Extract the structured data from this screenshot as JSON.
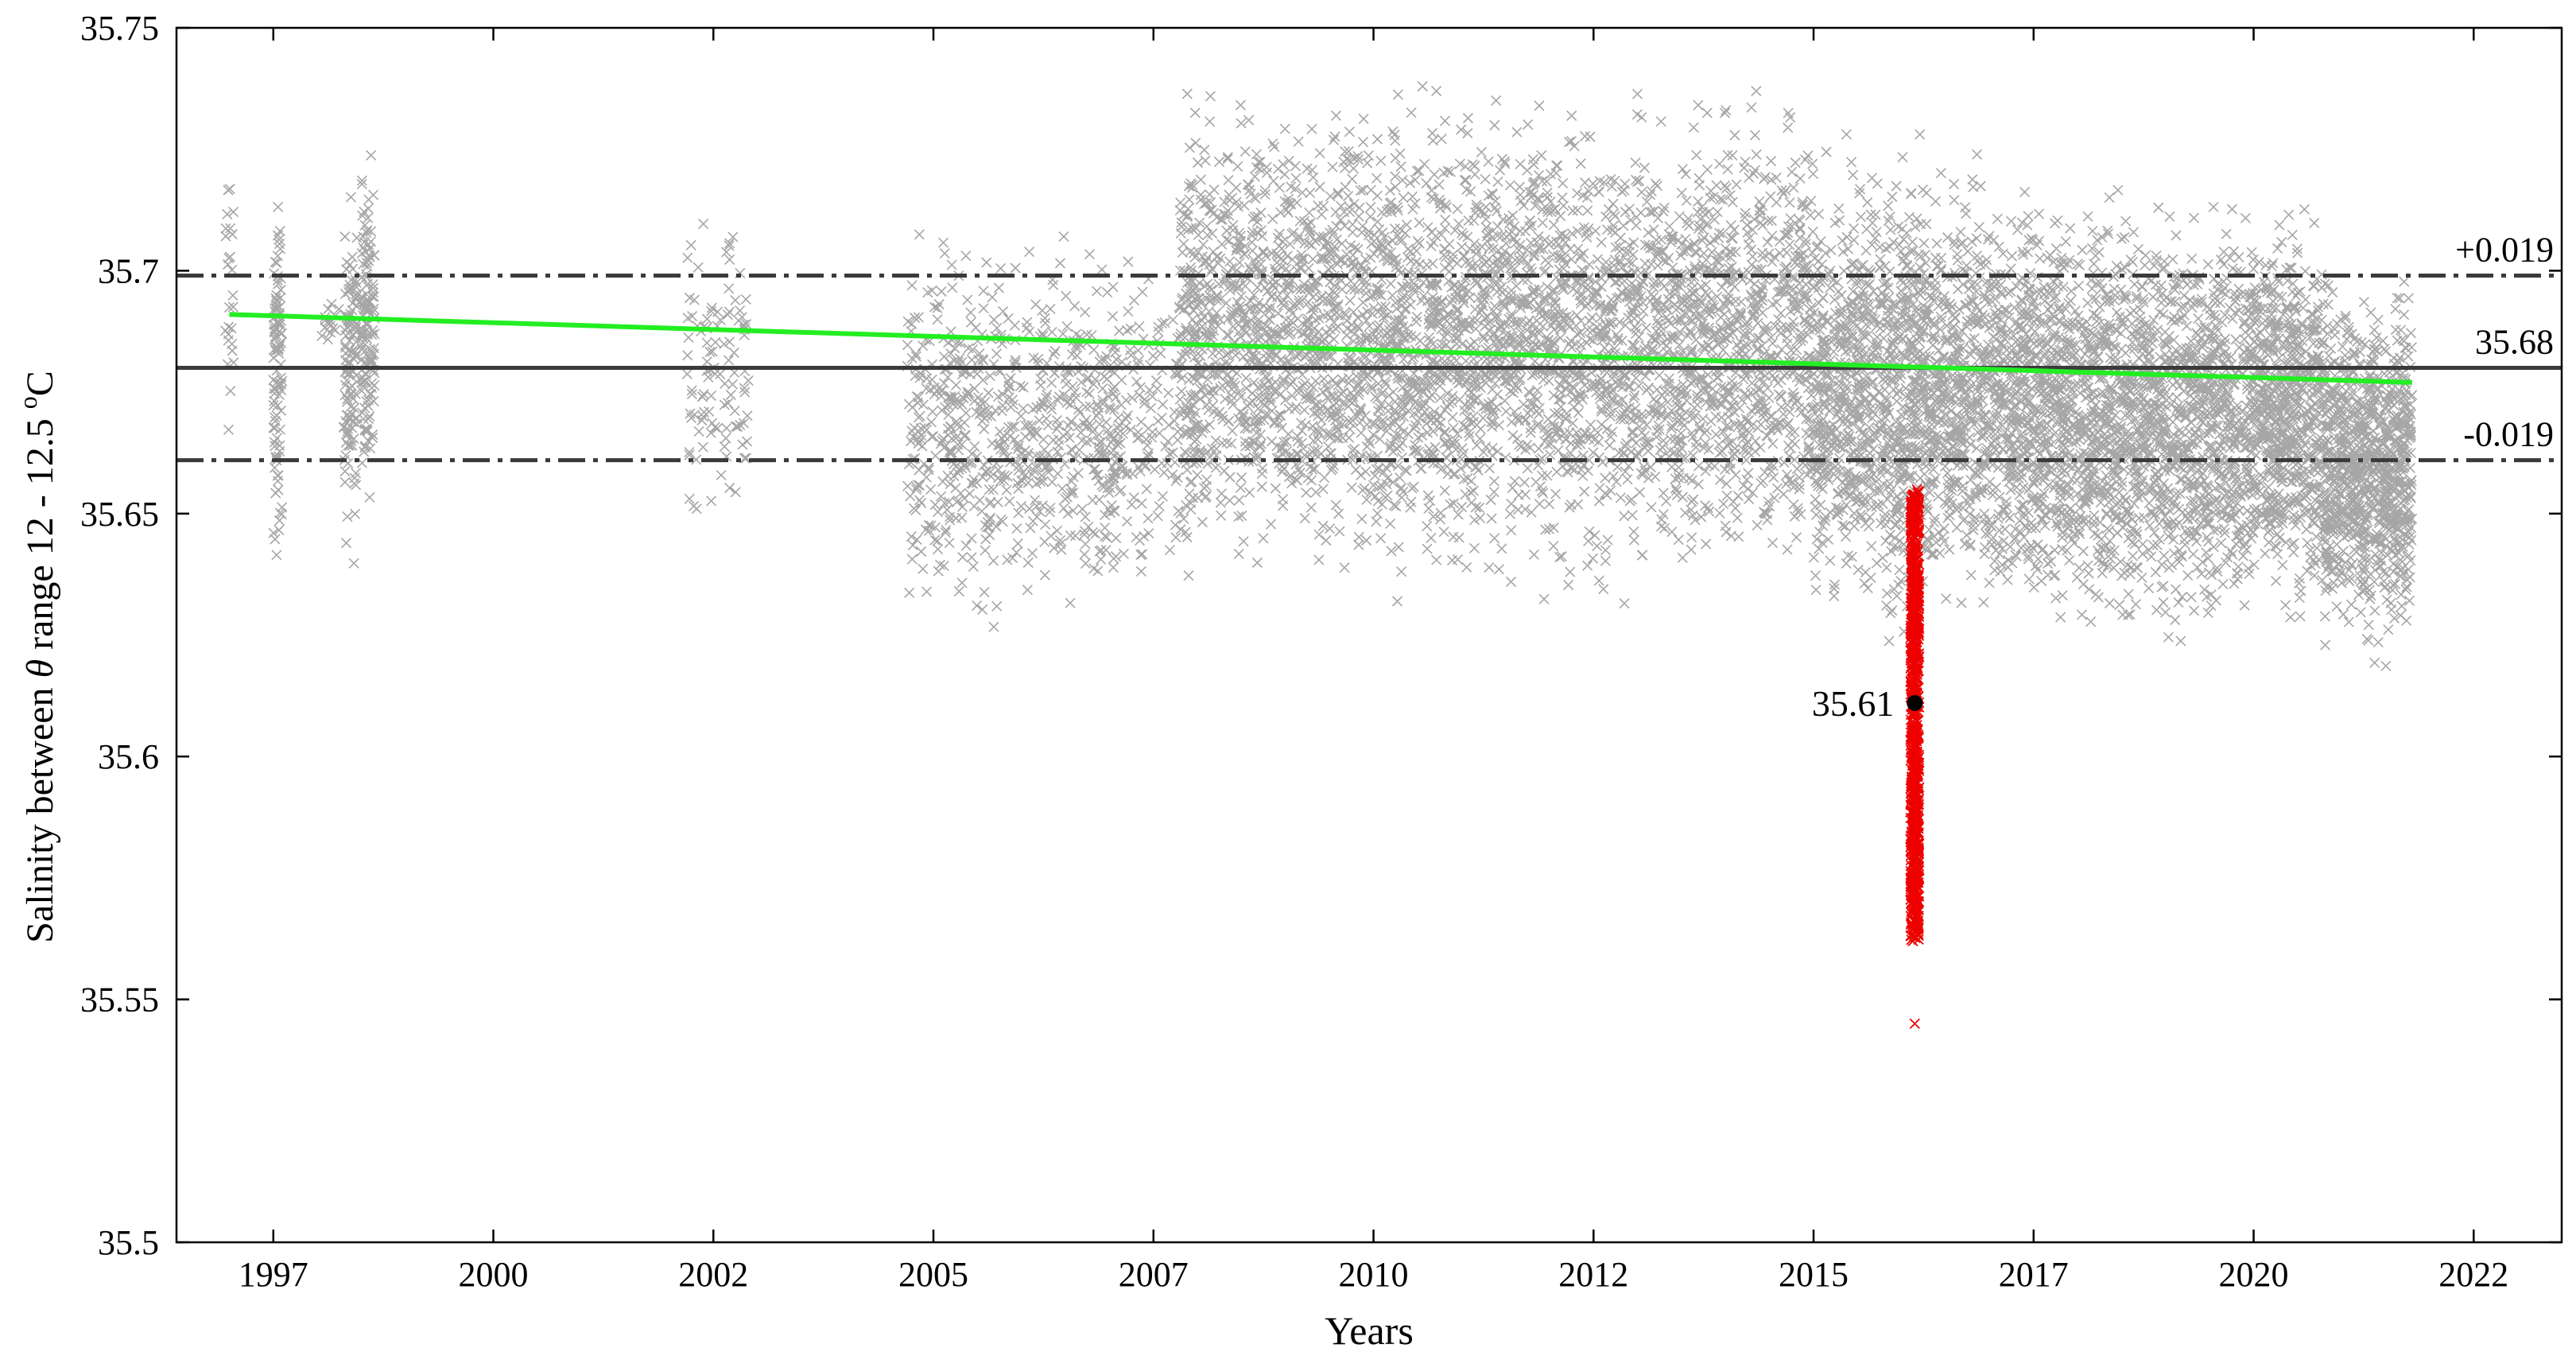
{
  "chart_data": {
    "type": "scatter",
    "ylabel_text": "Salinity between ",
    "ylabel_theta": "θ",
    "ylabel_range": " range 12 - 12.5 ",
    "ylabel_sup": "o",
    "ylabel_unit": "C",
    "xlabel": "Years",
    "ylim": [
      35.5,
      35.75
    ],
    "xlim": [
      1995.9,
      2023.0
    ],
    "grid": false,
    "y_ticks": [
      {
        "value": 35.5,
        "label": "35.5"
      },
      {
        "value": 35.55,
        "label": "35.55"
      },
      {
        "value": 35.6,
        "label": "35.6"
      },
      {
        "value": 35.65,
        "label": "35.65"
      },
      {
        "value": 35.7,
        "label": "35.7"
      },
      {
        "value": 35.75,
        "label": "35.75"
      }
    ],
    "x_ticks": [
      {
        "value": 1997.0,
        "label": "1997"
      },
      {
        "value": 1999.5,
        "label": "2000"
      },
      {
        "value": 2002.0,
        "label": "2002"
      },
      {
        "value": 2004.5,
        "label": "2005"
      },
      {
        "value": 2007.0,
        "label": "2007"
      },
      {
        "value": 2009.5,
        "label": "2010"
      },
      {
        "value": 2012.0,
        "label": "2012"
      },
      {
        "value": 2014.5,
        "label": "2015"
      },
      {
        "value": 2017.0,
        "label": "2017"
      },
      {
        "value": 2019.5,
        "label": "2020"
      },
      {
        "value": 2022.0,
        "label": "2022"
      }
    ],
    "reference_lines": [
      {
        "value": 35.68,
        "style": "solid",
        "color": "#3a3a3a",
        "label": "35.68"
      },
      {
        "value": 35.699,
        "style": "dashdot",
        "color": "#3a3a3a",
        "label": "+0.019"
      },
      {
        "value": 35.661,
        "style": "dashdot",
        "color": "#3a3a3a",
        "label": "-0.019"
      }
    ],
    "trend_line": {
      "color": "#22ee22",
      "points": [
        [
          1996.5,
          35.691
        ],
        [
          2021.3,
          35.677
        ]
      ]
    },
    "series": [
      {
        "color": "#a6a6a6",
        "marker": "x",
        "clusters": [
          {
            "x": [
              1996.45,
              1996.55
            ],
            "y": [
              35.658,
              35.73
            ],
            "density": 0.25
          },
          {
            "x": [
              1997.0,
              1997.1
            ],
            "y": [
              35.636,
              35.726
            ],
            "density": 1.0
          },
          {
            "x": [
              1997.55,
              1997.75
            ],
            "y": [
              35.683,
              35.695
            ],
            "density": 0.1
          },
          {
            "x": [
              1997.8,
              1997.95
            ],
            "y": [
              35.634,
              35.722
            ],
            "density": 0.9
          },
          {
            "x": [
              1998.0,
              1998.15
            ],
            "y": [
              35.645,
              35.73
            ],
            "density": 1.0
          },
          {
            "x": [
              2001.7,
              2002.4
            ],
            "y": [
              35.641,
              35.72
            ],
            "density": 0.25
          },
          {
            "x": [
              2004.2,
              2006.6
            ],
            "y": [
              35.622,
              35.712
            ],
            "density": 0.5
          },
          {
            "x": [
              2006.5,
              2007.3
            ],
            "y": [
              35.628,
              35.71
            ],
            "density": 0.3
          },
          {
            "x": [
              2007.3,
              2014.5
            ],
            "y": [
              35.628,
              35.744
            ],
            "density": 1.0
          },
          {
            "x": [
              2014.5,
              2017.0
            ],
            "y": [
              35.62,
              35.73
            ],
            "density": 1.3
          },
          {
            "x": [
              2017.0,
              2019.5
            ],
            "y": [
              35.618,
              35.722
            ],
            "density": 1.3
          },
          {
            "x": [
              2019.5,
              2020.3
            ],
            "y": [
              35.622,
              35.719
            ],
            "density": 1.4
          },
          {
            "x": [
              2020.3,
              2021.3
            ],
            "y": [
              35.616,
              35.703
            ],
            "density": 1.6
          }
        ]
      },
      {
        "color": "#ee0000",
        "marker": "x",
        "x_range": [
          2015.6,
          2015.7
        ],
        "y_range": [
          35.562,
          35.655
        ],
        "outliers": [
          [
            2015.65,
            35.545
          ]
        ]
      }
    ],
    "mean_point": {
      "x": 2015.65,
      "y": 35.611,
      "label": "35.61"
    }
  }
}
